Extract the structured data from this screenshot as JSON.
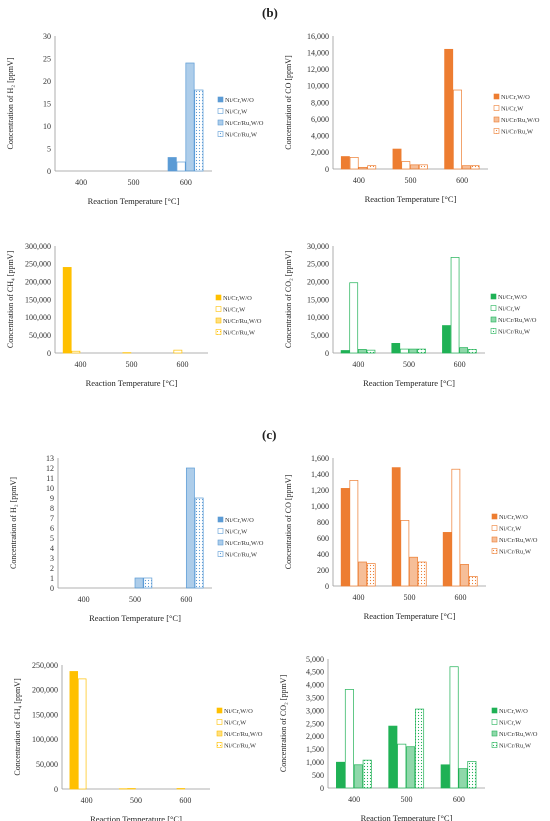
{
  "panels": [
    {
      "label": "(b)"
    },
    {
      "label": "(c)"
    }
  ],
  "legend_entries": [
    "Ni/Cr,W/O",
    "Ni/Cr,W",
    "Ni/Cr/Ru,W/O",
    "Ni/Cr/Ru,W"
  ],
  "chart_data": [
    {
      "id": "b-h2",
      "type": "bar",
      "categories": [
        "400",
        "500",
        "600"
      ],
      "xlabel": "Reaction Temperature [°C]",
      "ylabel": "Concentration of H₂ [ppmV]",
      "ylim": [
        0,
        30
      ],
      "yticks": [
        0,
        5,
        10,
        15,
        20,
        25,
        30
      ],
      "ytick_labels": [
        "0",
        "5",
        "10",
        "15",
        "20",
        "25",
        "30"
      ],
      "color": "#5b9bd5",
      "series": [
        {
          "name": "Ni/Cr,W/O",
          "values": [
            0,
            0,
            3
          ]
        },
        {
          "name": "Ni/Cr,W",
          "values": [
            0,
            0,
            2
          ]
        },
        {
          "name": "Ni/Cr/Ru,W/O",
          "values": [
            0,
            0,
            24
          ]
        },
        {
          "name": "Ni/Cr/Ru,W",
          "values": [
            0,
            0,
            18
          ]
        }
      ]
    },
    {
      "id": "b-co",
      "type": "bar",
      "categories": [
        "400",
        "500",
        "600"
      ],
      "xlabel": "Reaction Temperature [°C]",
      "ylabel": "Concentration of CO [ppmV]",
      "ylim": [
        0,
        16000
      ],
      "yticks": [
        0,
        2000,
        4000,
        6000,
        8000,
        10000,
        12000,
        14000,
        16000
      ],
      "ytick_labels": [
        "0",
        "2,000",
        "4,000",
        "6,000",
        "8,000",
        "10,000",
        "12,000",
        "14,000",
        "16,000"
      ],
      "color": "#ed7d31",
      "series": [
        {
          "name": "Ni/Cr,W/O",
          "values": [
            1500,
            2400,
            14400
          ]
        },
        {
          "name": "Ni/Cr,W",
          "values": [
            1400,
            900,
            9500
          ]
        },
        {
          "name": "Ni/Cr/Ru,W/O",
          "values": [
            200,
            500,
            400
          ]
        },
        {
          "name": "Ni/Cr/Ru,W",
          "values": [
            400,
            500,
            400
          ]
        }
      ]
    },
    {
      "id": "b-ch4",
      "type": "bar",
      "categories": [
        "400",
        "500",
        "600"
      ],
      "xlabel": "Reaction Temperature [°C]",
      "ylabel": "Concentration of CH₄ [ppmV]",
      "ylim": [
        0,
        300000
      ],
      "yticks": [
        0,
        50000,
        100000,
        150000,
        200000,
        250000,
        300000
      ],
      "ytick_labels": [
        "0",
        "50,000",
        "100,000",
        "150,000",
        "200,000",
        "250,000",
        "300,000"
      ],
      "color": "#ffc000",
      "series": [
        {
          "name": "Ni/Cr,W/O",
          "values": [
            240000,
            0,
            0
          ]
        },
        {
          "name": "Ni/Cr,W",
          "values": [
            5000,
            1000,
            8000
          ]
        },
        {
          "name": "Ni/Cr/Ru,W/O",
          "values": [
            0,
            0,
            0
          ]
        },
        {
          "name": "Ni/Cr/Ru,W",
          "values": [
            0,
            0,
            0
          ]
        }
      ]
    },
    {
      "id": "b-co2",
      "type": "bar",
      "categories": [
        "400",
        "500",
        "600"
      ],
      "xlabel": "Reaction Temperature [°C]",
      "ylabel": "Concentration of CO₂ [ppmV]",
      "ylim": [
        0,
        30000
      ],
      "yticks": [
        0,
        5000,
        10000,
        15000,
        20000,
        25000,
        30000
      ],
      "ytick_labels": [
        "0",
        "5,000",
        "10,000",
        "15,000",
        "20,000",
        "25,000",
        "30,000"
      ],
      "color": "#1fb155",
      "series": [
        {
          "name": "Ni/Cr,W/O",
          "values": [
            700,
            2700,
            7700
          ]
        },
        {
          "name": "Ni/Cr,W",
          "values": [
            19700,
            1100,
            26800
          ]
        },
        {
          "name": "Ni/Cr/Ru,W/O",
          "values": [
            1000,
            1100,
            1500
          ]
        },
        {
          "name": "Ni/Cr/Ru,W",
          "values": [
            800,
            1100,
            1000
          ]
        }
      ]
    },
    {
      "id": "c-h2",
      "type": "bar",
      "categories": [
        "400",
        "500",
        "600"
      ],
      "xlabel": "Reaction Temperature [°C]",
      "ylabel": "Concentration of H₂ [ppmV]",
      "ylim": [
        0,
        13
      ],
      "yticks": [
        0,
        1,
        2,
        3,
        4,
        5,
        6,
        7,
        8,
        9,
        10,
        11,
        12,
        13
      ],
      "ytick_labels": [
        "0",
        "1",
        "2",
        "3",
        "4",
        "5",
        "6",
        "7",
        "8",
        "9",
        "10",
        "11",
        "12",
        "13"
      ],
      "color": "#5b9bd5",
      "series": [
        {
          "name": "Ni/Cr,W/O",
          "values": [
            0,
            0,
            0
          ]
        },
        {
          "name": "Ni/Cr,W",
          "values": [
            0,
            0,
            0
          ]
        },
        {
          "name": "Ni/Cr/Ru,W/O",
          "values": [
            0,
            1,
            12
          ]
        },
        {
          "name": "Ni/Cr/Ru,W",
          "values": [
            0,
            1,
            9
          ]
        }
      ]
    },
    {
      "id": "c-co",
      "type": "bar",
      "categories": [
        "400",
        "500",
        "600"
      ],
      "xlabel": "Reaction Temperature [°C]",
      "ylabel": "Concentration of CO [ppmV]",
      "ylim": [
        0,
        1600
      ],
      "yticks": [
        0,
        200,
        400,
        600,
        800,
        1000,
        1200,
        1400,
        1600
      ],
      "ytick_labels": [
        "0",
        "200",
        "400",
        "600",
        "800",
        "1,000",
        "1,200",
        "1,400",
        "1,600"
      ],
      "color": "#ed7d31",
      "series": [
        {
          "name": "Ni/Cr,W/O",
          "values": [
            1220,
            1480,
            670
          ]
        },
        {
          "name": "Ni/Cr,W",
          "values": [
            1320,
            820,
            1460
          ]
        },
        {
          "name": "Ni/Cr/Ru,W/O",
          "values": [
            300,
            360,
            270
          ]
        },
        {
          "name": "Ni/Cr/Ru,W",
          "values": [
            280,
            300,
            120
          ]
        }
      ]
    },
    {
      "id": "c-ch4",
      "type": "bar",
      "categories": [
        "400",
        "500",
        "600"
      ],
      "xlabel": "Reaction Temperature [°C]",
      "ylabel": "Concentration of CH₄ [ppmV]",
      "ylim": [
        0,
        250000
      ],
      "yticks": [
        0,
        50000,
        100000,
        150000,
        200000,
        250000
      ],
      "ytick_labels": [
        "0",
        "50,000",
        "100,000",
        "150,000",
        "200,000",
        "250,000"
      ],
      "color": "#ffc000",
      "series": [
        {
          "name": "Ni/Cr,W/O",
          "values": [
            237000,
            500,
            0
          ]
        },
        {
          "name": "Ni/Cr,W",
          "values": [
            222000,
            1000,
            1000
          ]
        },
        {
          "name": "Ni/Cr/Ru,W/O",
          "values": [
            0,
            0,
            0
          ]
        },
        {
          "name": "Ni/Cr/Ru,W",
          "values": [
            0,
            0,
            0
          ]
        }
      ]
    },
    {
      "id": "c-co2",
      "type": "bar",
      "categories": [
        "400",
        "500",
        "600"
      ],
      "xlabel": "Reaction Temperature [°C]",
      "ylabel": "Concentration of CO₂ [ppmV]",
      "ylim": [
        0,
        5000
      ],
      "yticks": [
        0,
        500,
        1000,
        1500,
        2000,
        2500,
        3000,
        3500,
        4000,
        4500,
        5000
      ],
      "ytick_labels": [
        "0",
        "500",
        "1,000",
        "1,500",
        "2,000",
        "2,500",
        "3,000",
        "3,500",
        "4,000",
        "4,500",
        "5,000"
      ],
      "color": "#1fb155",
      "series": [
        {
          "name": "Ni/Cr,W/O",
          "values": [
            1000,
            2400,
            900
          ]
        },
        {
          "name": "Ni/Cr,W",
          "values": [
            3820,
            1700,
            4700
          ]
        },
        {
          "name": "Ni/Cr/Ru,W/O",
          "values": [
            900,
            1600,
            750
          ]
        },
        {
          "name": "Ni/Cr/Ru,W",
          "values": [
            1080,
            3060,
            1030
          ]
        }
      ]
    }
  ]
}
